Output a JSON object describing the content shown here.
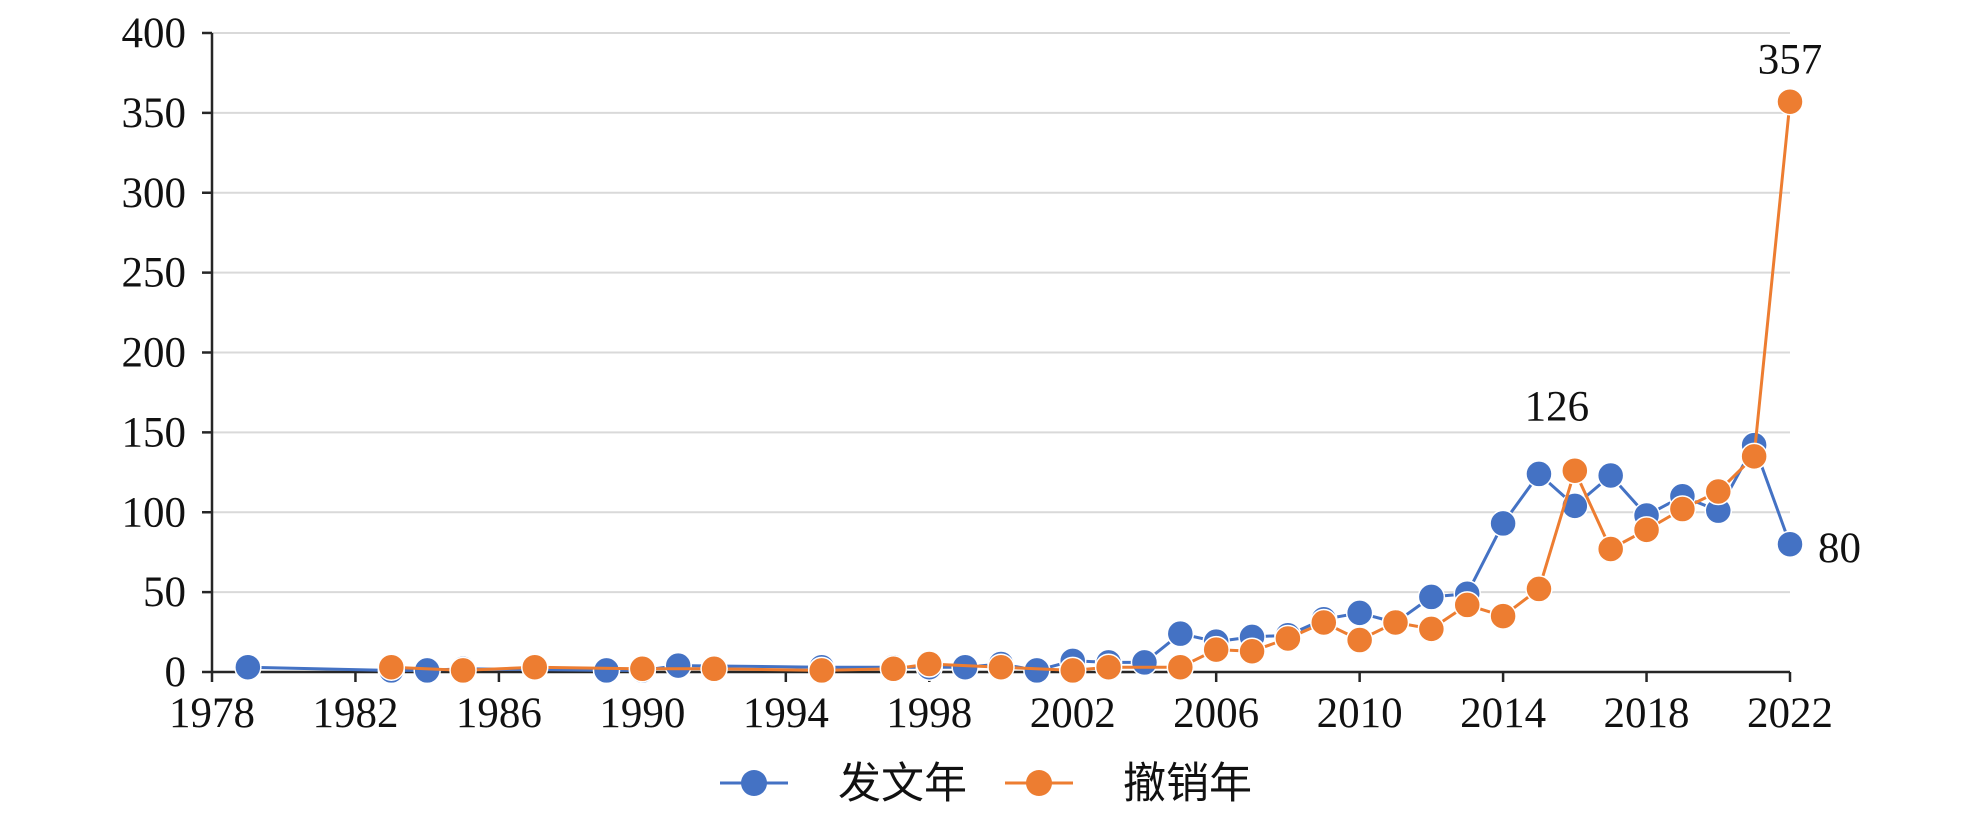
{
  "chart_data": {
    "type": "line",
    "title": "",
    "xlabel": "",
    "ylabel": "",
    "xlim": [
      1978,
      2022
    ],
    "ylim": [
      0,
      400
    ],
    "x_ticks": [
      1978,
      1982,
      1986,
      1990,
      1994,
      1998,
      2002,
      2006,
      2010,
      2014,
      2018,
      2022
    ],
    "y_ticks": [
      0,
      50,
      100,
      150,
      200,
      250,
      300,
      350,
      400
    ],
    "grid": true,
    "legend_position": "bottom",
    "series": [
      {
        "name": "发文年",
        "color": "#4472C4",
        "points": [
          [
            1979,
            3
          ],
          [
            1983,
            1
          ],
          [
            1984,
            1
          ],
          [
            1985,
            2
          ],
          [
            1989,
            1
          ],
          [
            1990,
            1
          ],
          [
            1991,
            4
          ],
          [
            1995,
            3
          ],
          [
            1997,
            3
          ],
          [
            1998,
            3
          ],
          [
            1999,
            3
          ],
          [
            2000,
            5
          ],
          [
            2001,
            1
          ],
          [
            2002,
            7
          ],
          [
            2003,
            6
          ],
          [
            2004,
            6
          ],
          [
            2005,
            24
          ],
          [
            2006,
            19
          ],
          [
            2007,
            22
          ],
          [
            2008,
            23
          ],
          [
            2009,
            33
          ],
          [
            2010,
            37
          ],
          [
            2011,
            31
          ],
          [
            2012,
            47
          ],
          [
            2013,
            49
          ],
          [
            2014,
            93
          ],
          [
            2015,
            124
          ],
          [
            2016,
            104
          ],
          [
            2017,
            123
          ],
          [
            2018,
            98
          ],
          [
            2019,
            110
          ],
          [
            2020,
            101
          ],
          [
            2021,
            142
          ],
          [
            2022,
            80
          ]
        ]
      },
      {
        "name": "撤销年",
        "color": "#ED7D31",
        "points": [
          [
            1983,
            3
          ],
          [
            1985,
            1
          ],
          [
            1987,
            3
          ],
          [
            1990,
            2
          ],
          [
            1992,
            2
          ],
          [
            1995,
            1
          ],
          [
            1997,
            2
          ],
          [
            1998,
            5
          ],
          [
            2000,
            3
          ],
          [
            2002,
            1
          ],
          [
            2003,
            3
          ],
          [
            2005,
            3
          ],
          [
            2006,
            14
          ],
          [
            2007,
            13
          ],
          [
            2008,
            21
          ],
          [
            2009,
            31
          ],
          [
            2010,
            20
          ],
          [
            2011,
            31
          ],
          [
            2012,
            27
          ],
          [
            2013,
            42
          ],
          [
            2014,
            35
          ],
          [
            2015,
            52
          ],
          [
            2016,
            126
          ],
          [
            2017,
            77
          ],
          [
            2018,
            89
          ],
          [
            2019,
            102
          ],
          [
            2020,
            113
          ],
          [
            2021,
            135
          ],
          [
            2022,
            357
          ]
        ]
      }
    ],
    "annotations": [
      {
        "text": "126",
        "series": 1,
        "x": 2016
      },
      {
        "text": "357",
        "series": 1,
        "x": 2022
      },
      {
        "text": "80",
        "series": 0,
        "x": 2022
      }
    ]
  }
}
